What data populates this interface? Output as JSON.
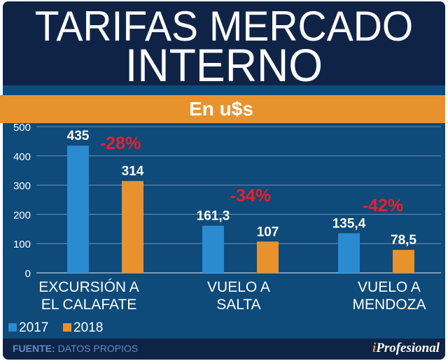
{
  "title_line1": "TARIFAS MERCADO",
  "title_line2": "INTERNO",
  "subtitle": "En u$s",
  "footer": {
    "label": "FUENTE:",
    "source": "DATOS PROPIOS",
    "brand_i": "i",
    "brand_rest": "Profesional"
  },
  "colors": {
    "2017": "#2a8bd0",
    "2018": "#e8922e",
    "change": "#e8202a"
  },
  "chart_data": {
    "type": "bar",
    "title": "TARIFAS MERCADO INTERNO",
    "subtitle": "En u$s",
    "categories": [
      [
        "EXCURSIÓN A",
        "EL CALAFATE"
      ],
      [
        "VUELO A",
        "SALTA"
      ],
      [
        "VUELO A",
        "MENDOZA"
      ]
    ],
    "series": [
      {
        "name": "2017",
        "values": [
          435,
          161.3,
          135.4
        ],
        "labels": [
          "435",
          "161,3",
          "135,4"
        ]
      },
      {
        "name": "2018",
        "values": [
          314,
          107,
          78.5
        ],
        "labels": [
          "314",
          "107",
          "78,5"
        ]
      }
    ],
    "changes": [
      "-28%",
      "-34%",
      "-42%"
    ],
    "ylim": [
      0,
      500
    ],
    "yticks": [
      "0",
      "100",
      "200",
      "300",
      "400",
      "500"
    ],
    "grid": true,
    "legend": "bottom-left"
  }
}
